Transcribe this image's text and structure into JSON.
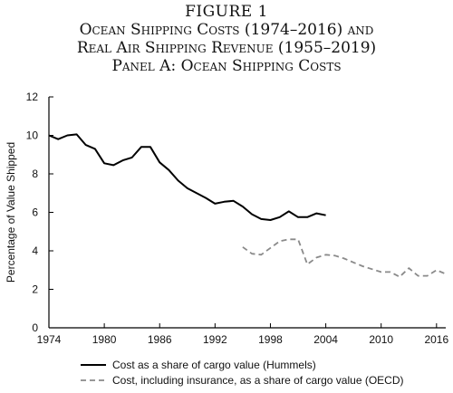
{
  "figure": {
    "number": "FIGURE 1",
    "title_line1": "Ocean Shipping Costs (1974–2016) and",
    "title_line2": "Real Air Shipping Revenue (1955–2019)",
    "panel_title": "Panel A: Ocean Shipping Costs"
  },
  "chart_data": {
    "type": "line",
    "title": "Panel A: Ocean Shipping Costs",
    "xlabel": "",
    "ylabel": "Percentage of Value Shipped",
    "xlim": [
      1974,
      2017
    ],
    "ylim": [
      0,
      12
    ],
    "x_ticks": [
      1974,
      1980,
      1986,
      1992,
      1998,
      2004,
      2010,
      2016
    ],
    "y_ticks": [
      0,
      2,
      4,
      6,
      8,
      10,
      12
    ],
    "grid": false,
    "legend_position": "bottom",
    "series": [
      {
        "name": "Cost as a share of cargo value (Hummels)",
        "style": "solid",
        "color": "#000000",
        "x": [
          1974,
          1975,
          1976,
          1977,
          1978,
          1979,
          1980,
          1981,
          1982,
          1983,
          1984,
          1985,
          1986,
          1987,
          1988,
          1989,
          1990,
          1991,
          1992,
          1993,
          1994,
          1995,
          1996,
          1997,
          1998,
          1999,
          2000,
          2001,
          2002,
          2003,
          2004
        ],
        "y": [
          10.0,
          9.8,
          10.0,
          10.05,
          9.5,
          9.3,
          8.55,
          8.45,
          8.7,
          8.85,
          9.4,
          9.4,
          8.6,
          8.2,
          7.65,
          7.25,
          7.0,
          6.75,
          6.45,
          6.55,
          6.6,
          6.3,
          5.9,
          5.65,
          5.6,
          5.75,
          6.05,
          5.75,
          5.75,
          5.95,
          5.85
        ]
      },
      {
        "name": "Cost, including insurance, as a share of cargo value (OECD)",
        "style": "dashed",
        "color": "#8a8a8a",
        "x": [
          1995,
          1996,
          1997,
          1998,
          1999,
          2000,
          2001,
          2002,
          2003,
          2004,
          2005,
          2006,
          2007,
          2008,
          2009,
          2010,
          2011,
          2012,
          2013,
          2014,
          2015,
          2016,
          2017
        ],
        "y": [
          4.2,
          3.85,
          3.8,
          4.15,
          4.5,
          4.6,
          4.6,
          3.3,
          3.65,
          3.8,
          3.75,
          3.6,
          3.4,
          3.2,
          3.05,
          2.9,
          2.9,
          2.65,
          3.1,
          2.7,
          2.7,
          3.0,
          2.8
        ]
      }
    ]
  },
  "colors": {
    "axis": "#000000",
    "hummels": "#000000",
    "oecd": "#8a8a8a"
  }
}
